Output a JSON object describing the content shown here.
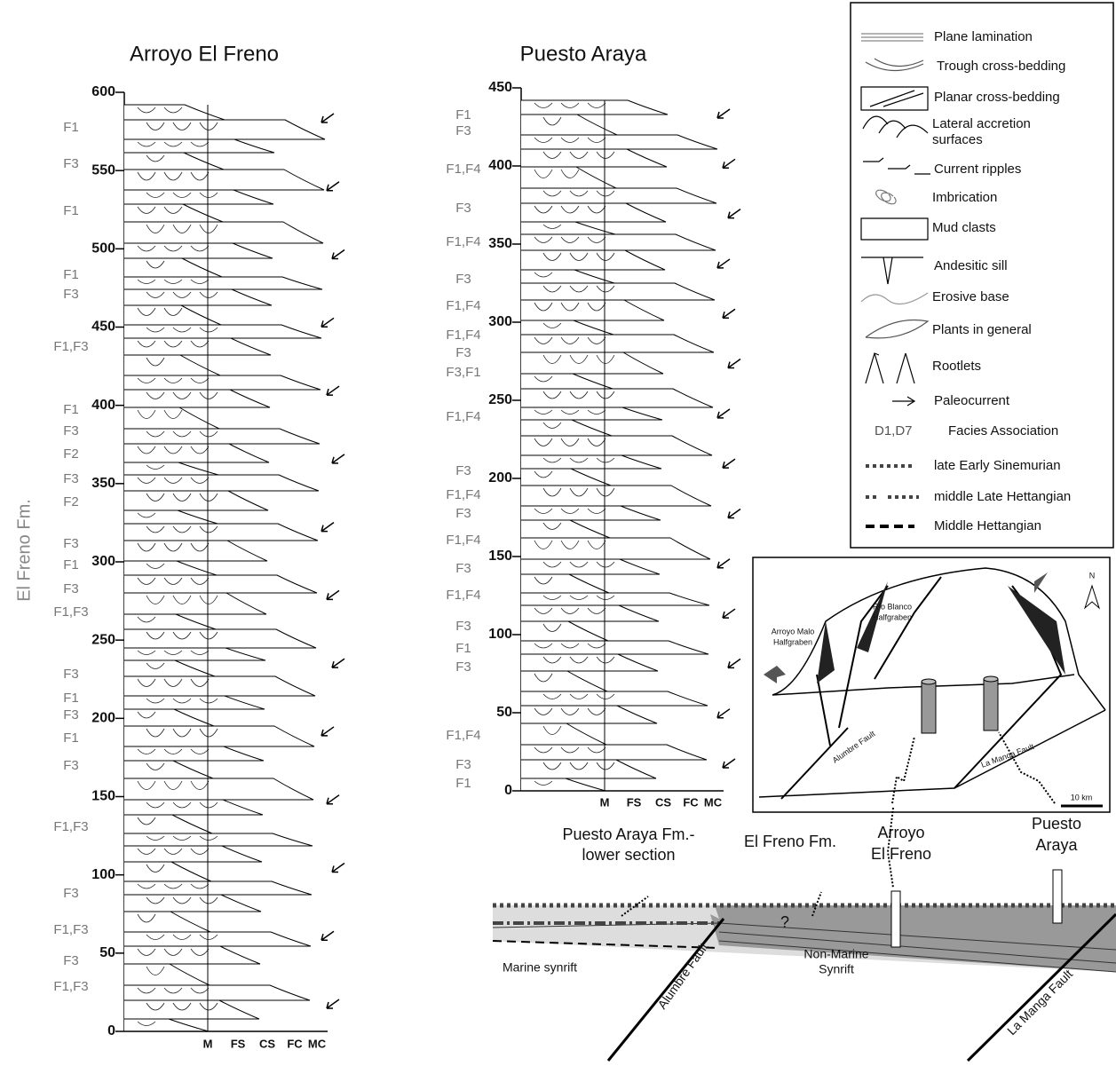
{
  "sections": [
    {
      "title": "Arroyo El Freno",
      "formation": "El Freno Fm.",
      "ylim": [
        0,
        600
      ],
      "yticks": [
        0,
        50,
        100,
        150,
        200,
        250,
        300,
        350,
        400,
        450,
        500,
        550,
        600
      ],
      "facies": [
        "F1",
        "F3",
        "F1",
        "F1",
        "F3",
        "F1,F3",
        "F1",
        "F3",
        "F2",
        "F3",
        "F2",
        "F3",
        "F1",
        "F3",
        "F1,F3",
        "F3",
        "F1",
        "F3",
        "F1",
        "F3",
        "F1,F3",
        "F3",
        "F1,F3",
        "F3",
        "F1,F3"
      ],
      "grain_sizes": [
        "M",
        "FS",
        "CS",
        "FC",
        "MC"
      ]
    },
    {
      "title": "Puesto Araya",
      "ylim": [
        0,
        450
      ],
      "yticks": [
        0,
        50,
        100,
        150,
        200,
        250,
        300,
        350,
        400,
        450
      ],
      "facies": [
        "F1",
        "F3",
        "F1,F4",
        "F3",
        "F1,F4",
        "F3",
        "F1,F4",
        "F1,F4",
        "F3",
        "F3,F1",
        "F1,F4",
        "F3",
        "F1,F4",
        "F3",
        "F1,F4",
        "F3",
        "F1,F4",
        "F3",
        "F1",
        "F3",
        "F1,F4",
        "F3",
        "F1"
      ],
      "grain_sizes": [
        "M",
        "FS",
        "CS",
        "FC",
        "MC"
      ]
    }
  ],
  "legend": [
    "Plane lamination",
    "Trough cross-bedding",
    "Planar cross-bedding",
    "Lateral accretion",
    "surfaces",
    "Current ripples",
    "Imbrication",
    "Mud clasts",
    "Andesitic sill",
    "Erosive base",
    "Plants in general",
    "Rootlets",
    "Paleocurrent",
    "D1,D7",
    "Facies Association",
    "late Early Sinemurian",
    "middle Late Hettangian",
    "Middle Hettangian"
  ],
  "map": {
    "labels": [
      "Arroyo Malo",
      "Halfgraben",
      "Río Blanco",
      "Halfgraben",
      "Alumbre Fault",
      "La Manga Fault",
      "N",
      "10 km"
    ]
  },
  "cross_section": {
    "labels": [
      "Puesto Araya Fm.-",
      "lower section",
      "El Freno Fm.",
      "Arroyo",
      "El Freno",
      "Puesto",
      "Araya",
      "?",
      "Marine synrift",
      "Alumbre Fault",
      "Non-Marine",
      "Synrift",
      "La Manga Fault"
    ]
  }
}
